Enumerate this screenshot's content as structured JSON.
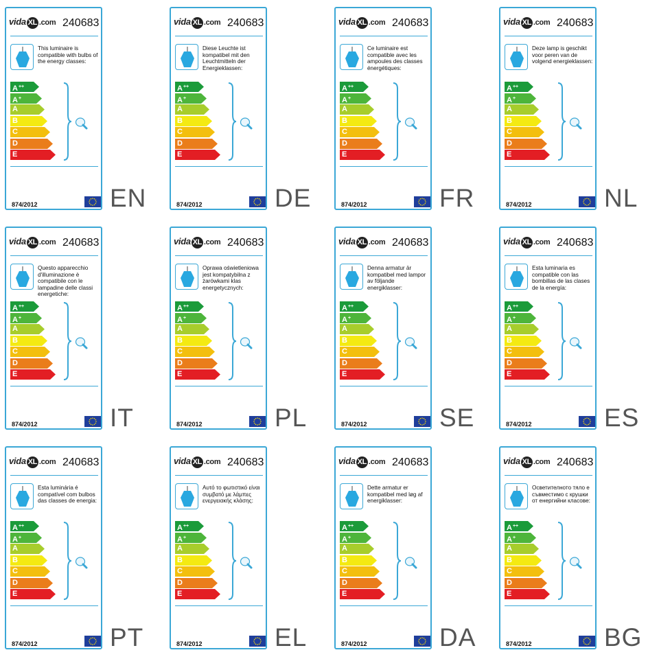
{
  "brand": {
    "name_part1": "vida",
    "name_mark": "XL",
    "name_part2": ".com"
  },
  "model_number": "240683",
  "regulation": "874/2012",
  "energy_classes": [
    {
      "letter": "A",
      "sup": "++",
      "color": "#1b9b3a"
    },
    {
      "letter": "A",
      "sup": "+",
      "color": "#4db53b"
    },
    {
      "letter": "A",
      "sup": "",
      "color": "#a7cd2c"
    },
    {
      "letter": "B",
      "sup": "",
      "color": "#f4ea12"
    },
    {
      "letter": "C",
      "sup": "",
      "color": "#f3bf0e"
    },
    {
      "letter": "D",
      "sup": "",
      "color": "#ea7d1b"
    },
    {
      "letter": "E",
      "sup": "",
      "color": "#e31e24"
    }
  ],
  "colors": {
    "accent": "#3aa7d6",
    "lamp": "#29a8e0",
    "eu_flag": "#1f3e9b",
    "eu_star": "#ffdd00"
  },
  "icons": {
    "lamp": "pendant-lamp-icon",
    "bulb": "light-bulb-icon",
    "flag": "eu-flag-icon"
  },
  "labels": [
    {
      "lang": "EN",
      "text": "This luminaire is compatible with bulbs of the energy classes:"
    },
    {
      "lang": "DE",
      "text": "Diese Leuchte ist kompatibel mit den Leuchtmitteln der Energieklassen:"
    },
    {
      "lang": "FR",
      "text": "Ce luminaire est compatible avec les ampoules des classes énergétiques:"
    },
    {
      "lang": "NL",
      "text": "Deze lamp is geschikt voor peren van de volgend energieklassen:"
    },
    {
      "lang": "IT",
      "text": "Questo apparecchio d'illuminazione è compatibile con le lampadine delle classi energetiche:"
    },
    {
      "lang": "PL",
      "text": "Oprawa oświetleniowa jest kompatybilna z żarówkami klas energetycznych:"
    },
    {
      "lang": "SE",
      "text": "Denna armatur är kompatibel med lampor av följande energiklasser:"
    },
    {
      "lang": "ES",
      "text": "Esta luminaria es compatible con las bombillas de las clases de la energía:"
    },
    {
      "lang": "PT",
      "text": "Esta luminária é compatível com bulbos das classes de energia:"
    },
    {
      "lang": "EL",
      "text": "Αυτό το φωτιστικό είναι συμβατό με λάμπες ενεργειακής κλάσης:"
    },
    {
      "lang": "DA",
      "text": "Dette armatur er kompatibel med løg af energiklasser:"
    },
    {
      "lang": "BG",
      "text": "Осветителното тяло е съвместимо с крушки от енергийни класове:"
    }
  ]
}
